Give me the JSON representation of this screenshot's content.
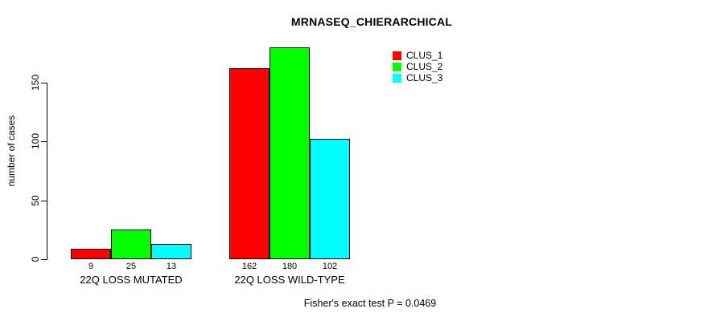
{
  "title": "MRNASEQ_CHIERARCHICAL",
  "chart_data": {
    "type": "bar",
    "title": "MRNASEQ_CHIERARCHICAL",
    "xlabel": "",
    "ylabel": "number of cases",
    "categories": [
      "22Q LOSS MUTATED",
      "22Q LOSS WILD-TYPE"
    ],
    "series": [
      {
        "name": "CLUS_1",
        "color": "#ff0000",
        "values": [
          9,
          162
        ]
      },
      {
        "name": "CLUS_2",
        "color": "#00ff00",
        "values": [
          25,
          180
        ]
      },
      {
        "name": "CLUS_3",
        "color": "#00ffff",
        "values": [
          13,
          102
        ]
      }
    ],
    "yticks": [
      0,
      50,
      100,
      150
    ],
    "ylim": [
      0,
      150
    ],
    "grid": false,
    "bar_value_labels": true,
    "legend_position": "top-right",
    "annotation": "Fisher's exact test P = 0.0469"
  }
}
